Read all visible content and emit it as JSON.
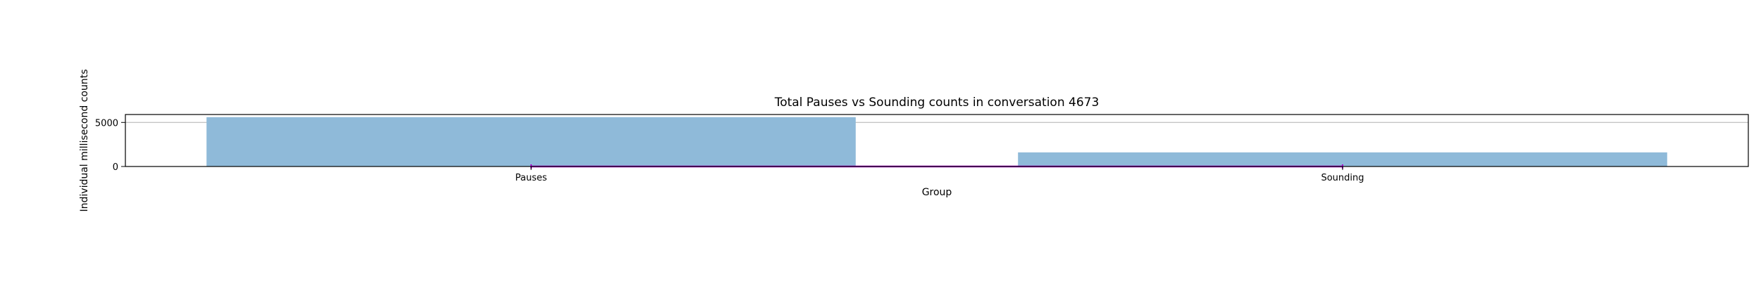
{
  "chart_data": {
    "type": "bar",
    "title": "Total Pauses vs Sounding counts in conversation 4673",
    "xlabel": "Group",
    "ylabel": "Individual millisecond counts",
    "categories": [
      "Pauses",
      "Sounding"
    ],
    "values": [
      5600,
      1600
    ],
    "ylim": [
      0,
      5900
    ],
    "yticks": [
      "0",
      "5000"
    ],
    "grid": "horizontal",
    "bar_color": "#8fbad9",
    "overlay_line": {
      "values": [
        0,
        0
      ],
      "color": "#aa00cc"
    }
  }
}
